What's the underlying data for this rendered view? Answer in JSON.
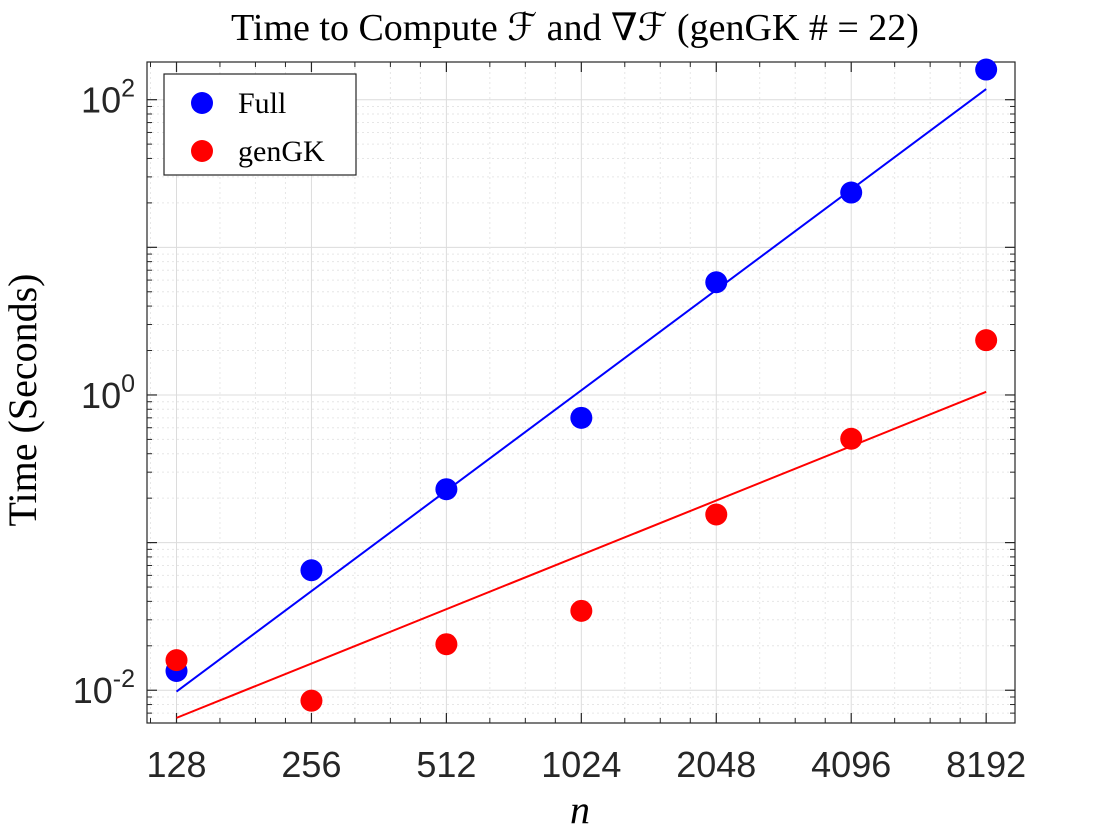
{
  "chart_data": {
    "type": "scatter",
    "title": "Time to Compute ℱ and ∇ℱ (genGK # = 22)",
    "xlabel": "n",
    "ylabel": "Time (Seconds)",
    "x_scale": "log2",
    "y_scale": "log10",
    "xlim": [
      110,
      9500
    ],
    "ylim": [
      0.006,
      180
    ],
    "xticks": [
      128,
      256,
      512,
      1024,
      2048,
      4096,
      8192
    ],
    "xtick_labels": [
      "128",
      "256",
      "512",
      "1024",
      "2048",
      "4096",
      "8192"
    ],
    "yticks": [
      {
        "value": 0.01,
        "base": "10",
        "exp": "-2"
      },
      {
        "value": 1,
        "base": "10",
        "exp": "0"
      },
      {
        "value": 100,
        "base": "10",
        "exp": "2"
      }
    ],
    "grid": true,
    "legend_position": "top-left",
    "series": [
      {
        "name": "Full",
        "color": "#0000ff",
        "x": [
          128,
          256,
          512,
          1024,
          2048,
          4096,
          8192
        ],
        "y": [
          0.0135,
          0.065,
          0.23,
          0.7,
          5.8,
          23.5,
          160
        ],
        "fit_line": {
          "x": [
            128,
            8192
          ],
          "y": [
            0.0098,
            118
          ]
        }
      },
      {
        "name": "genGK",
        "color": "#ff0000",
        "x": [
          128,
          256,
          512,
          1024,
          2048,
          4096,
          8192
        ],
        "y": [
          0.016,
          0.0085,
          0.0205,
          0.0345,
          0.155,
          0.505,
          2.35
        ],
        "fit_line": {
          "x": [
            128,
            8192
          ],
          "y": [
            0.0065,
            1.05
          ]
        }
      }
    ]
  }
}
